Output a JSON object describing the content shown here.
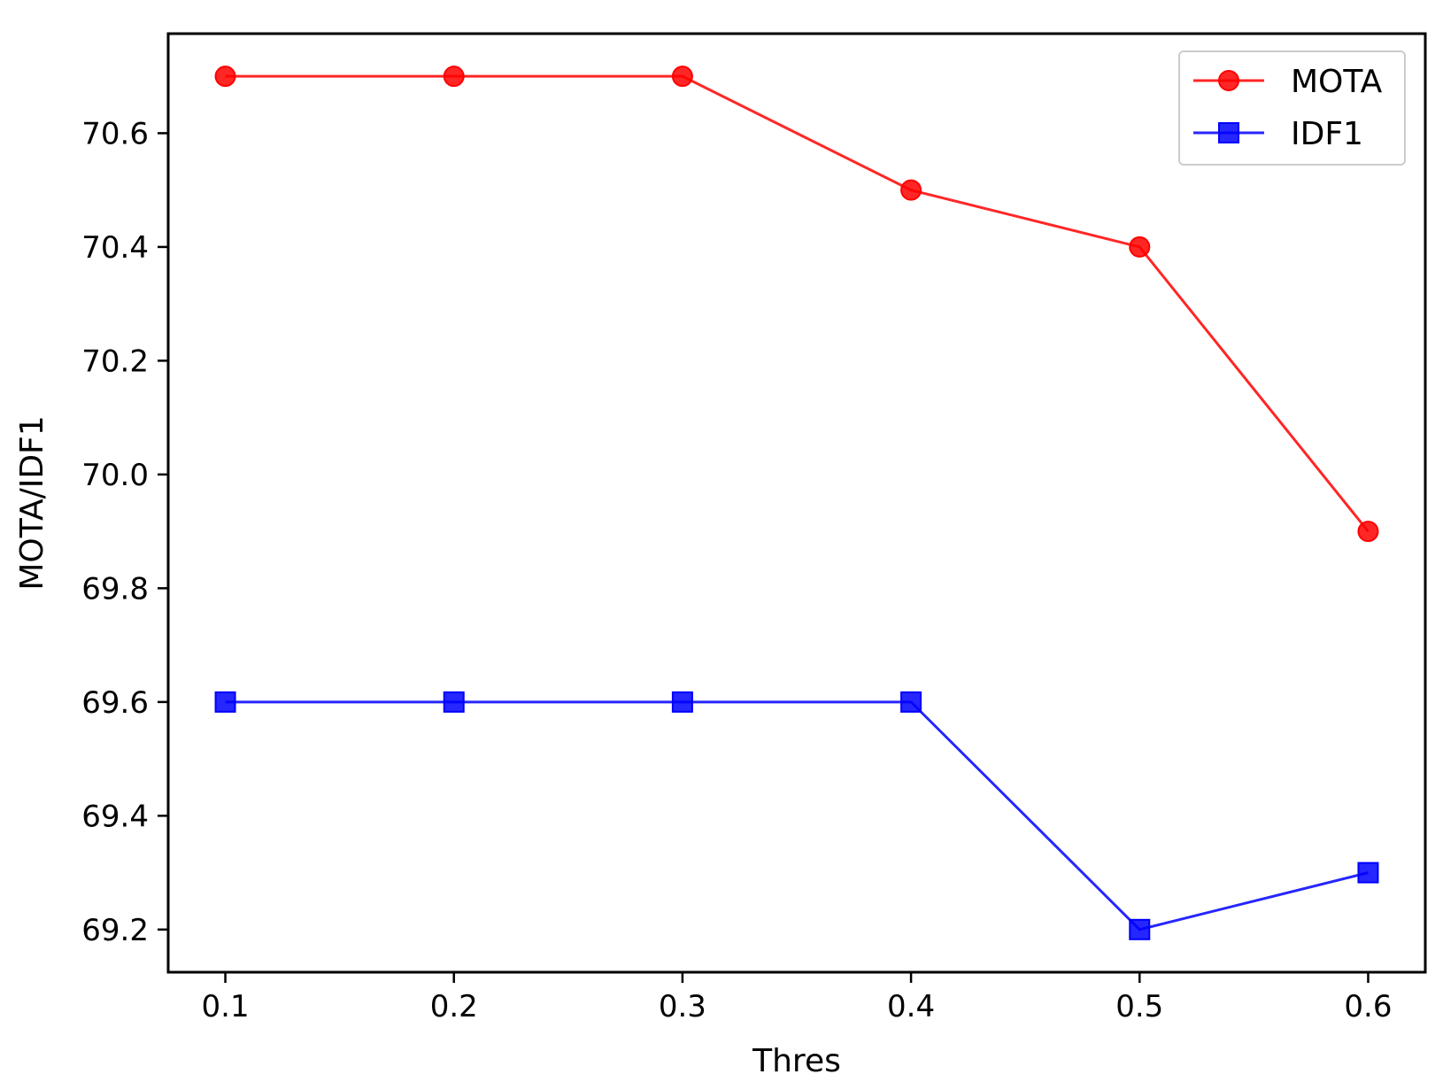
{
  "chart_data": {
    "type": "line",
    "title": "",
    "xlabel": "Thres",
    "ylabel": "MOTA/IDF1",
    "x": [
      0.1,
      0.2,
      0.3,
      0.4,
      0.5,
      0.6
    ],
    "xlim": [
      0.075,
      0.625
    ],
    "ylim": [
      69.125,
      70.775
    ],
    "xticks": [
      "0.1",
      "0.2",
      "0.3",
      "0.4",
      "0.5",
      "0.6"
    ],
    "yticks": [
      "69.2",
      "69.4",
      "69.6",
      "69.8",
      "70.0",
      "70.2",
      "70.4",
      "70.6"
    ],
    "grid": false,
    "legend_position": "top-right",
    "series": [
      {
        "name": "MOTA",
        "marker": "circle",
        "color": "#ff0000",
        "values": [
          70.7,
          70.7,
          70.7,
          70.5,
          70.4,
          69.9
        ]
      },
      {
        "name": "IDF1",
        "marker": "square",
        "color": "#0000ff",
        "values": [
          69.6,
          69.6,
          69.6,
          69.6,
          69.2,
          69.3
        ]
      }
    ]
  }
}
